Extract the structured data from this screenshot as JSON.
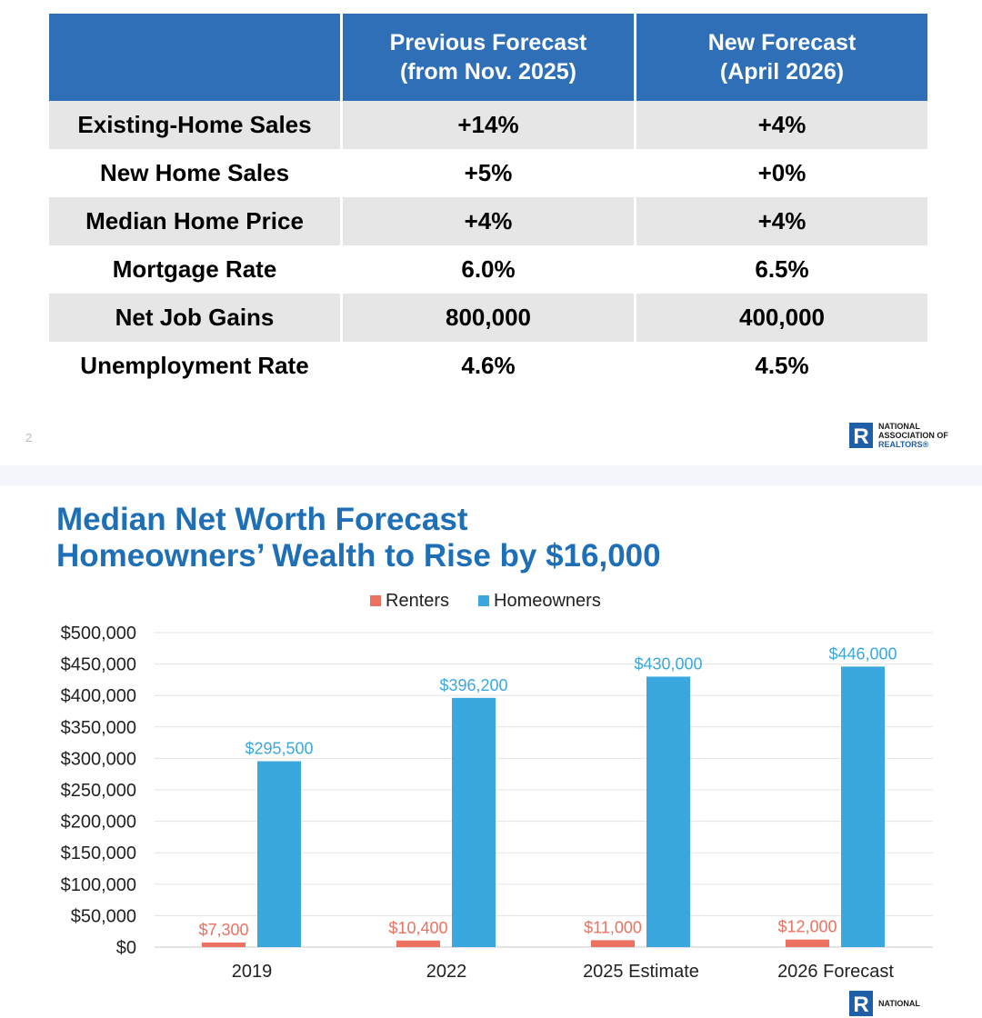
{
  "forecast_table": {
    "header": [
      "",
      "Previous Forecast\n(from Nov. 2025)",
      "New Forecast\n(April 2026)"
    ],
    "rows": [
      [
        "Existing-Home Sales",
        "+14%",
        "+4%"
      ],
      [
        "New Home Sales",
        "+5%",
        "+0%"
      ],
      [
        "Median Home Price",
        "+4%",
        "+4%"
      ],
      [
        "Mortgage Rate",
        "6.0%",
        "6.5%"
      ],
      [
        "Net Job Gains",
        "800,000",
        "400,000"
      ],
      [
        "Unemployment Rate",
        "4.6%",
        "4.5%"
      ]
    ]
  },
  "page_number": "2",
  "logo": {
    "line1": "NATIONAL",
    "line2": "ASSOCIATION OF",
    "line3": "REALTORS®",
    "mark": "R"
  },
  "colors": {
    "header_blue": "#2e6fb7",
    "title_blue": "#1f6fb6",
    "renters": "#ed7161",
    "homeowners": "#3aa8df",
    "row_shade": "#e6e6e6"
  },
  "chart_data": {
    "type": "bar",
    "title": "Median Net Worth Forecast",
    "subtitle": "Homeowners’ Wealth to Rise by $16,000",
    "categories": [
      "2019",
      "2022",
      "2025 Estimate",
      "2026 Forecast"
    ],
    "series": [
      {
        "name": "Renters",
        "values": [
          7300,
          10400,
          11000,
          12000
        ],
        "labels": [
          "$7,300",
          "$10,400",
          "$11,000",
          "$12,000"
        ],
        "color": "#ed7161"
      },
      {
        "name": "Homeowners",
        "values": [
          295500,
          396200,
          430000,
          446000
        ],
        "labels": [
          "$295,500",
          "$396,200",
          "$430,000",
          "$446,000"
        ],
        "color": "#3aa8df"
      }
    ],
    "ylim": [
      0,
      500000
    ],
    "yticks": [
      {
        "value": 0,
        "label": "$0"
      },
      {
        "value": 50000,
        "label": "$50,000"
      },
      {
        "value": 100000,
        "label": "$100,000"
      },
      {
        "value": 150000,
        "label": "$150,000"
      },
      {
        "value": 200000,
        "label": "$200,000"
      },
      {
        "value": 250000,
        "label": "$250,000"
      },
      {
        "value": 300000,
        "label": "$300,000"
      },
      {
        "value": 350000,
        "label": "$350,000"
      },
      {
        "value": 400000,
        "label": "$400,000"
      },
      {
        "value": 450000,
        "label": "$450,000"
      },
      {
        "value": 500000,
        "label": "$500,000"
      }
    ],
    "grid": true,
    "legend": "top-center"
  }
}
